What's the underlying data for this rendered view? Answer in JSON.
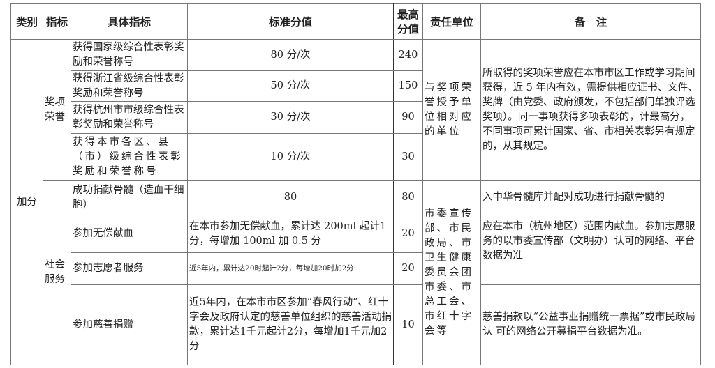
{
  "headers": [
    "类别",
    "指标",
    "具体指标",
    "标准分值",
    "最高分值",
    "责任单位",
    "备　注"
  ],
  "category": "加分",
  "groups": [
    {
      "indicator": "奖项荣誉",
      "responsible": "与奖项荣誉授予单位相对应的单位",
      "remark": "所取得的奖项荣誉应在本市市区工作或学习期间获得，近 5 年内有效，需提供相应证书、文件、奖牌（由党委、政府颁发，不包括部门单独评选奖项）。同一事项获得多项表彰的，计最高分，不同事项可累计国家、省、市相关表彰另有规定的，从其规定。",
      "rows": [
        {
          "item": "获得国家级综合性表彰奖励和荣誉称号",
          "standard": "80 分/次",
          "max": "240"
        },
        {
          "item": "获得浙江省级综合性表彰奖励和荣誉称号",
          "standard": "50 分/次",
          "max": "150"
        },
        {
          "item": "获得杭州市市级综合性表彰奖励和荣誉称号",
          "standard": "30 分/次",
          "max": "90"
        },
        {
          "item": "获得本市各区、县（市）级综合性表彰奖励和荣誉称号",
          "standard": "10 分/次",
          "max": "30"
        }
      ]
    },
    {
      "indicator": "社会服务",
      "responsible": "市委宣传部、市民政局、市卫生健康委员会团市委、市总工会、市红十字会等",
      "rows": [
        {
          "item": "成功捐献骨髓（造血干细胞）",
          "standard": "80",
          "max": "80",
          "remark": "入中华骨髓库并配对成功进行捐献骨髓的"
        },
        {
          "item": "参加无偿献血",
          "standard": "在本市参加无偿献血，累计达 200ml 起计1 分，每增加 100ml 加 0.5 分",
          "max": "20",
          "remark": "应在本市（杭州地区）范围内献血。参加志愿服务的以市委宣传部（文明办）认可的网络、平台数据为准"
        },
        {
          "item": "参加志愿者服务",
          "standard": "近5年内，累计达20时起计2分，每增加20时加2分",
          "max": "20"
        },
        {
          "item": "参加慈善捐赠",
          "standard": "近5年内，在本市市区参加“春风行动”、红十字会及政府认定的慈善单位组织的慈善活动捐款，累计达1千元起计2分，每增加1千元加2分",
          "max": "10",
          "remark": "慈善捐款以“公益事业捐赠统一票据”或市民政局认 可的网络公开募捐平台数据为准。"
        }
      ]
    }
  ]
}
